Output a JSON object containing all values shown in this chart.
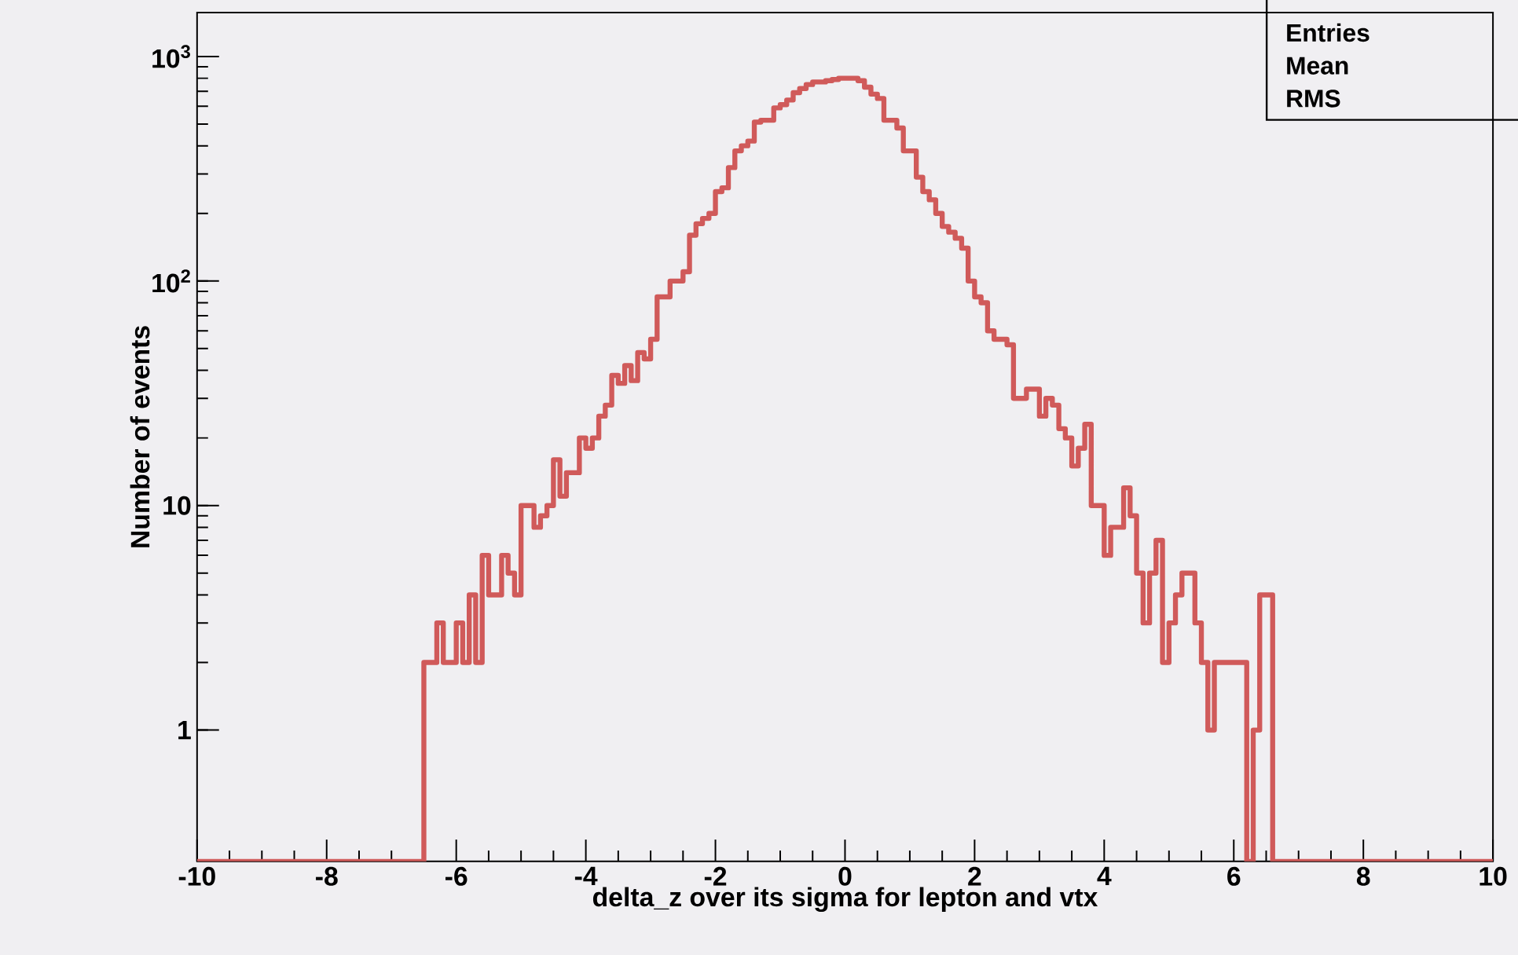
{
  "chart_data": {
    "type": "histogram",
    "xlabel": "delta_z over its sigma for lepton and vtx",
    "ylabel": "Number of events",
    "color": "#d05a5a",
    "log": "y",
    "xlim": [
      -10,
      10
    ],
    "ylim": [
      0.26,
      1570
    ],
    "xticks": [
      -10,
      -8,
      -6,
      -4,
      -2,
      0,
      2,
      4,
      6,
      8,
      10
    ],
    "yticks": [
      {
        "value": 1,
        "label": "1"
      },
      {
        "value": 10,
        "label": "10"
      },
      {
        "value": 100,
        "label": "10$^{2}$"
      },
      {
        "value": 1000,
        "label": "10$^{3}$"
      }
    ],
    "annotations": [
      "Entries",
      "Mean",
      "RMS"
    ],
    "bins": [
      -10,
      -9.9,
      -9.8,
      -9.7,
      -9.6,
      -9.5,
      -9.4,
      -9.3,
      -9.2,
      -9.1,
      -9,
      -8.9,
      -8.8,
      -8.7,
      -8.6,
      -8.5,
      -8.4,
      -8.3,
      -8.2,
      -8.1,
      -8,
      -7.9,
      -7.8,
      -7.7,
      -7.6,
      -7.5,
      -7.4,
      -7.3,
      -7.2,
      -7.1,
      -7,
      -6.9,
      -6.8,
      -6.7,
      -6.6,
      -6.5,
      -6.4,
      -6.3,
      -6.2,
      -6.1,
      -6,
      -5.9,
      -5.8,
      -5.7,
      -5.6,
      -5.5,
      -5.4,
      -5.3,
      -5.2,
      -5.1,
      -5,
      -4.9,
      -4.8,
      -4.7,
      -4.6,
      -4.5,
      -4.4,
      -4.3,
      -4.2,
      -4.1,
      -4,
      -3.9,
      -3.8,
      -3.7,
      -3.6,
      -3.5,
      -3.4,
      -3.3,
      -3.2,
      -3.1,
      -3,
      -2.9,
      -2.8,
      -2.7,
      -2.6,
      -2.5,
      -2.4,
      -2.3,
      -2.2,
      -2.1,
      -2,
      -1.9,
      -1.8,
      -1.7,
      -1.6,
      -1.5,
      -1.4,
      -1.3,
      -1.2,
      -1.1,
      -1,
      -0.9,
      -0.8,
      -0.7,
      -0.6,
      -0.5,
      -0.4,
      -0.3,
      -0.2,
      -0.1,
      0,
      0.1,
      0.2,
      0.3,
      0.4,
      0.5,
      0.6,
      0.7,
      0.8,
      0.9,
      1,
      1.1,
      1.2,
      1.3,
      1.4,
      1.5,
      1.6,
      1.7,
      1.8,
      1.9,
      2,
      2.1,
      2.2,
      2.3,
      2.4,
      2.5,
      2.6,
      2.7,
      2.8,
      2.9,
      3,
      3.1,
      3.2,
      3.3,
      3.4,
      3.5,
      3.6,
      3.7,
      3.8,
      3.9,
      4,
      4.1,
      4.2,
      4.3,
      4.4,
      4.5,
      4.6,
      4.7,
      4.8,
      4.9,
      5,
      5.1,
      5.2,
      5.3,
      5.4,
      5.5,
      5.6,
      5.7,
      5.8,
      5.9,
      6,
      6.1,
      6.2,
      6.3,
      6.4,
      6.5,
      6.6,
      6.7,
      6.8,
      6.9,
      7,
      7.1,
      7.2,
      7.3,
      7.4,
      7.5,
      7.6,
      7.7,
      7.8,
      7.9,
      8,
      8.1,
      8.2,
      8.3,
      8.4,
      8.5,
      8.6,
      8.7,
      8.8,
      8.9,
      9,
      9.1,
      9.2,
      9.3,
      9.4,
      9.5,
      9.6,
      9.7,
      9.8,
      9.9,
      10
    ],
    "values": [
      null,
      null,
      null,
      null,
      null,
      null,
      null,
      null,
      null,
      null,
      null,
      null,
      null,
      null,
      null,
      null,
      null,
      null,
      null,
      null,
      null,
      null,
      null,
      null,
      null,
      null,
      null,
      null,
      null,
      null,
      null,
      null,
      null,
      null,
      null,
      2,
      2,
      3,
      2,
      2,
      3,
      2,
      4,
      2,
      6,
      4,
      4,
      6,
      5,
      4,
      10,
      10,
      8,
      9,
      10,
      16,
      11,
      14,
      14,
      20,
      18,
      20,
      25,
      28,
      38,
      35,
      42,
      36,
      48,
      45,
      55,
      85,
      85,
      100,
      100,
      110,
      160,
      180,
      190,
      200,
      250,
      260,
      320,
      380,
      400,
      420,
      510,
      520,
      520,
      590,
      610,
      640,
      690,
      720,
      750,
      770,
      770,
      780,
      790,
      800,
      800,
      800,
      780,
      730,
      680,
      650,
      520,
      520,
      480,
      380,
      380,
      290,
      250,
      230,
      200,
      175,
      165,
      155,
      140,
      100,
      85,
      80,
      60,
      55,
      55,
      52,
      30,
      30,
      33,
      33,
      25,
      30,
      28,
      22,
      20,
      15,
      18,
      23,
      10,
      10,
      6,
      8,
      8,
      12,
      9,
      5,
      3,
      5,
      7,
      2,
      3,
      4,
      5,
      5,
      3,
      2,
      1,
      2,
      2,
      2,
      2,
      2,
      null,
      1,
      4,
      4,
      null,
      null,
      null,
      null,
      null,
      null,
      null,
      null,
      null,
      null,
      null,
      null,
      null,
      null,
      null,
      null,
      null,
      null,
      null,
      null,
      null,
      null,
      null,
      null,
      null,
      null,
      null,
      null,
      null,
      null,
      null,
      null,
      null,
      null
    ]
  }
}
